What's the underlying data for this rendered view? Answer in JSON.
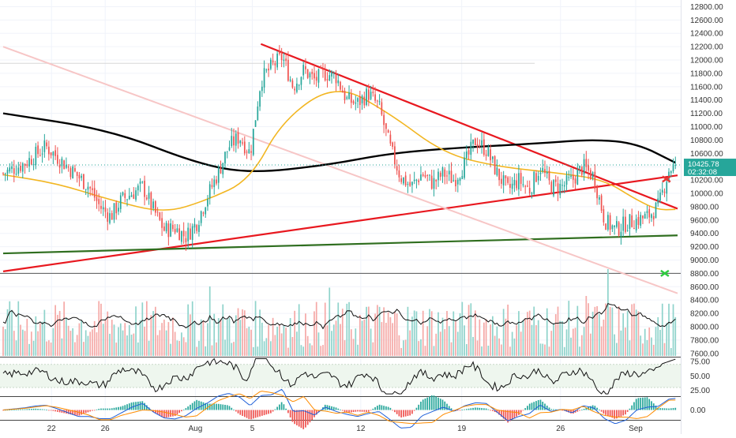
{
  "chart_data": {
    "type": "candlestick",
    "title": "",
    "price_axis": {
      "ticks": [
        "12800.00",
        "12600.00",
        "12400.00",
        "12200.00",
        "12000.00",
        "11800.00",
        "11600.00",
        "11400.00",
        "11200.00",
        "11000.00",
        "10800.00",
        "10600.00",
        "10400.00",
        "10200.00",
        "10000.00",
        "9800.00",
        "9600.00",
        "9400.00",
        "9200.00",
        "9000.00",
        "8800.00",
        "8600.00",
        "8400.00",
        "8200.00",
        "8000.00",
        "7800.00",
        "7600.00"
      ],
      "range": [
        7550,
        12900
      ]
    },
    "rsi_axis": {
      "ticks": [
        "75.00",
        "50.00",
        "25.00"
      ],
      "range": [
        15,
        82
      ]
    },
    "macd_axis": {
      "ticks": [
        "0.00"
      ]
    },
    "time_axis": {
      "ticks": [
        "22",
        "26",
        "Aug",
        "5",
        "12",
        "19",
        "26",
        "Sep"
      ]
    },
    "last_price": {
      "value": "10425.78",
      "countdown": "02:32:08"
    },
    "reference_levels": [
      11950,
      8800
    ],
    "annotations": [
      {
        "kind": "cross",
        "color": "#e53935",
        "price": 10215
      },
      {
        "kind": "cross",
        "color": "#2ecc40",
        "price": 8800
      }
    ],
    "price_path": [
      {
        "day": 0,
        "price": 10300
      },
      {
        "day": 2,
        "price": 10450
      },
      {
        "day": 4,
        "price": 10700
      },
      {
        "day": 6,
        "price": 10400
      },
      {
        "day": 8,
        "price": 10100
      },
      {
        "day": 9,
        "price": 9800
      },
      {
        "day": 10,
        "price": 9650
      },
      {
        "day": 11,
        "price": 9900
      },
      {
        "day": 13,
        "price": 10100
      },
      {
        "day": 14,
        "price": 9750
      },
      {
        "day": 15,
        "price": 9450
      },
      {
        "day": 16,
        "price": 9480
      },
      {
        "day": 17,
        "price": 9350
      },
      {
        "day": 18,
        "price": 9550
      },
      {
        "day": 19,
        "price": 9950
      },
      {
        "day": 20,
        "price": 10300
      },
      {
        "day": 21,
        "price": 10700
      },
      {
        "day": 22,
        "price": 10850
      },
      {
        "day": 23,
        "price": 10600
      },
      {
        "day": 24,
        "price": 11700
      },
      {
        "day": 25,
        "price": 11900
      },
      {
        "day": 26,
        "price": 12050
      },
      {
        "day": 27,
        "price": 11600
      },
      {
        "day": 28,
        "price": 11850
      },
      {
        "day": 29,
        "price": 11700
      },
      {
        "day": 30,
        "price": 11800
      },
      {
        "day": 31,
        "price": 11750
      },
      {
        "day": 32,
        "price": 11400
      },
      {
        "day": 33,
        "price": 11350
      },
      {
        "day": 34,
        "price": 11500
      },
      {
        "day": 35,
        "price": 11300
      },
      {
        "day": 36,
        "price": 10700
      },
      {
        "day": 37,
        "price": 10250
      },
      {
        "day": 38,
        "price": 10100
      },
      {
        "day": 39,
        "price": 10300
      },
      {
        "day": 40,
        "price": 10150
      },
      {
        "day": 41,
        "price": 10300
      },
      {
        "day": 42,
        "price": 10200
      },
      {
        "day": 43,
        "price": 10450
      },
      {
        "day": 44,
        "price": 10800
      },
      {
        "day": 45,
        "price": 10650
      },
      {
        "day": 46,
        "price": 10300
      },
      {
        "day": 47,
        "price": 10050
      },
      {
        "day": 48,
        "price": 10200
      },
      {
        "day": 49,
        "price": 10050
      },
      {
        "day": 50,
        "price": 10400
      },
      {
        "day": 51,
        "price": 10100
      },
      {
        "day": 52,
        "price": 10100
      },
      {
        "day": 53,
        "price": 10200
      },
      {
        "day": 54,
        "price": 10400
      },
      {
        "day": 55,
        "price": 10250
      },
      {
        "day": 56,
        "price": 9600
      },
      {
        "day": 57,
        "price": 9450
      },
      {
        "day": 58,
        "price": 9550
      },
      {
        "day": 59,
        "price": 9600
      },
      {
        "day": 60,
        "price": 9650
      },
      {
        "day": 61,
        "price": 9800
      },
      {
        "day": 62,
        "price": 10350
      },
      {
        "day": 62.6,
        "price": 10426
      }
    ],
    "time_ticks": [
      {
        "label": "22",
        "day": 4.5
      },
      {
        "label": "26",
        "day": 9.5
      },
      {
        "label": "Aug",
        "day": 17.9
      },
      {
        "label": "5",
        "day": 23.2
      },
      {
        "label": "12",
        "day": 33.3
      },
      {
        "label": "19",
        "day": 42.7
      },
      {
        "label": "26",
        "day": 51.9
      },
      {
        "label": "Sep",
        "day": 58.9
      }
    ],
    "trendlines": [
      {
        "name": "",
        "color": "#e8181f",
        "from": {
          "day": 24.0,
          "price": 12240
        },
        "to": {
          "day": 62.8,
          "price": 9770
        }
      },
      {
        "name": "",
        "color": "#e8181f",
        "from": {
          "day": 0,
          "price": 8830
        },
        "to": {
          "day": 62.8,
          "price": 10270
        }
      },
      {
        "name": "",
        "color": "#2f6e1f",
        "from": {
          "day": 0,
          "price": 9100
        },
        "to": {
          "day": 62.8,
          "price": 9370
        }
      },
      {
        "name": "",
        "color": "#f7c6c6",
        "from": {
          "day": 0,
          "price": 12200
        },
        "to": {
          "day": 62.8,
          "price": 8500
        }
      }
    ],
    "moving_averages": [
      {
        "name": "",
        "color": "#000000",
        "points": [
          {
            "day": 0,
            "price": 11200
          },
          {
            "day": 10,
            "price": 10950
          },
          {
            "day": 18,
            "price": 10450
          },
          {
            "day": 23,
            "price": 10300
          },
          {
            "day": 30,
            "price": 10420
          },
          {
            "day": 36,
            "price": 10600
          },
          {
            "day": 42,
            "price": 10680
          },
          {
            "day": 50,
            "price": 10750
          },
          {
            "day": 55,
            "price": 10810
          },
          {
            "day": 59,
            "price": 10750
          },
          {
            "day": 62.6,
            "price": 10460
          }
        ]
      },
      {
        "name": "",
        "color": "#f2b622",
        "points": [
          {
            "day": 0,
            "price": 10280
          },
          {
            "day": 5,
            "price": 10150
          },
          {
            "day": 10,
            "price": 9900
          },
          {
            "day": 15,
            "price": 9700
          },
          {
            "day": 19,
            "price": 9900
          },
          {
            "day": 23,
            "price": 10200
          },
          {
            "day": 26,
            "price": 11100
          },
          {
            "day": 31,
            "price": 11650
          },
          {
            "day": 36,
            "price": 11200
          },
          {
            "day": 41,
            "price": 10600
          },
          {
            "day": 46,
            "price": 10400
          },
          {
            "day": 52,
            "price": 10300
          },
          {
            "day": 56,
            "price": 10200
          },
          {
            "day": 59,
            "price": 9900
          },
          {
            "day": 61,
            "price": 9750
          },
          {
            "day": 62.6,
            "price": 9760
          }
        ]
      }
    ]
  }
}
